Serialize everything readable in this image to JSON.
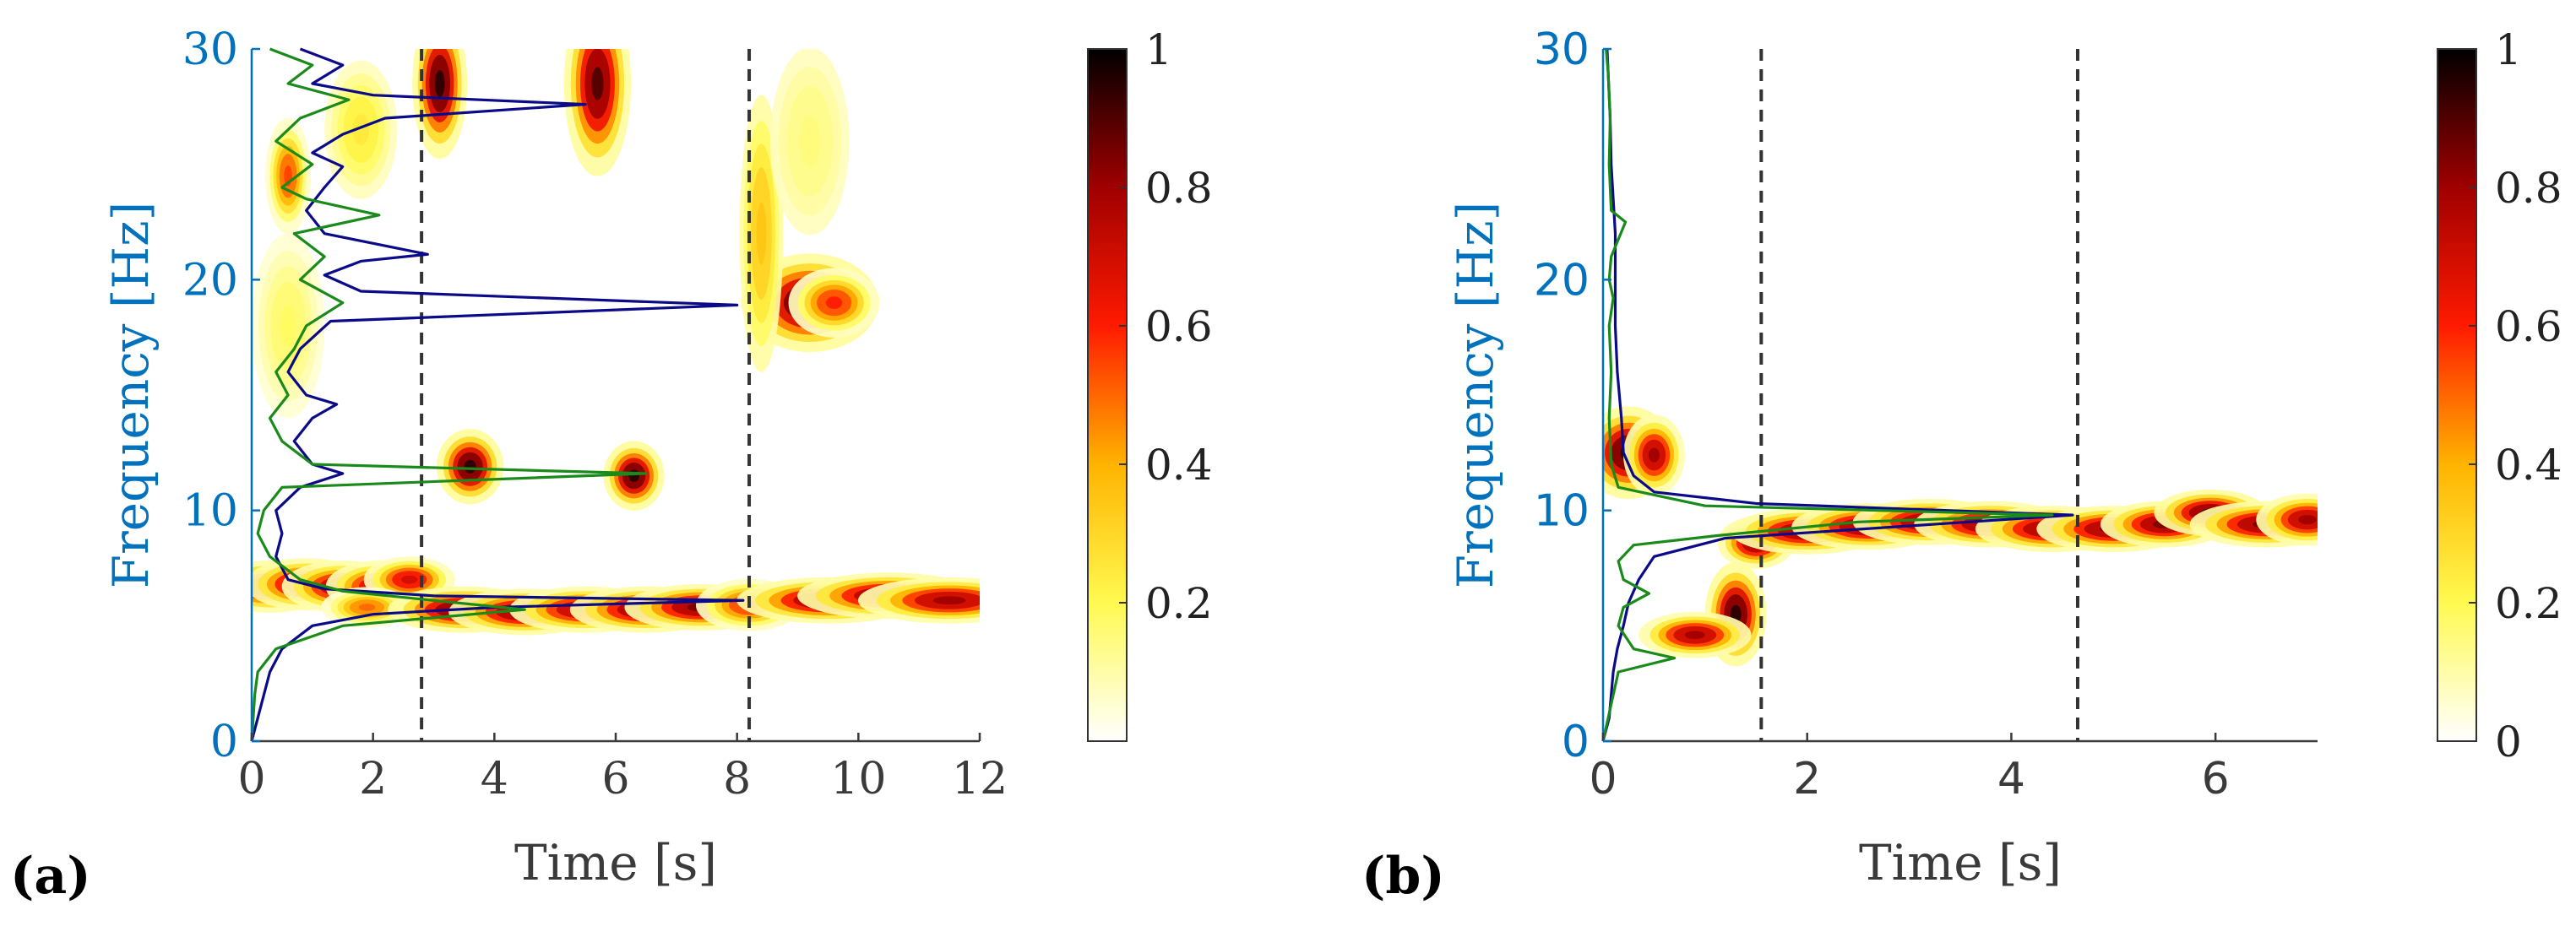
{
  "figure": {
    "panels": [
      "(a)",
      "(b)"
    ]
  },
  "colors": {
    "axis_blue": "#0072BD",
    "curve_blue": "#0B0B8A",
    "curve_green": "#1A8A1A",
    "dashed": "#333333",
    "tick": "#3a3a3a"
  },
  "chart_data": [
    {
      "panel": "(a)",
      "type": "heatmap",
      "title": "",
      "xlabel": "Time [s]",
      "ylabel": "Frequency [Hz]",
      "xlim": [
        0,
        12
      ],
      "ylim": [
        0,
        30
      ],
      "xticks": [
        0,
        2,
        4,
        6,
        8,
        10,
        12
      ],
      "yticks": [
        0,
        10,
        20,
        30
      ],
      "dashed_lines_x": [
        2.8,
        8.2
      ],
      "colorbar": {
        "min": 0,
        "max": 1,
        "ticks": [
          0.2,
          0.4,
          0.6,
          0.8,
          1
        ],
        "labels": [
          "0.2",
          "0.4",
          "0.6",
          "0.8",
          "1"
        ]
      },
      "blobs": [
        {
          "t": 0.3,
          "f": 6.7,
          "st": 0.4,
          "sf": 0.45,
          "a": 0.85
        },
        {
          "t": 0.9,
          "f": 6.8,
          "st": 0.4,
          "sf": 0.45,
          "a": 0.85
        },
        {
          "t": 1.5,
          "f": 6.7,
          "st": 0.4,
          "sf": 0.45,
          "a": 0.8
        },
        {
          "t": 2.1,
          "f": 6.7,
          "st": 0.35,
          "sf": 0.45,
          "a": 0.75
        },
        {
          "t": 2.6,
          "f": 7.0,
          "st": 0.3,
          "sf": 0.4,
          "a": 0.7
        },
        {
          "t": 1.9,
          "f": 5.8,
          "st": 0.3,
          "sf": 0.35,
          "a": 0.5
        },
        {
          "t": 3.5,
          "f": 5.7,
          "st": 0.5,
          "sf": 0.4,
          "a": 0.9
        },
        {
          "t": 4.5,
          "f": 5.6,
          "st": 0.5,
          "sf": 0.4,
          "a": 0.85
        },
        {
          "t": 5.5,
          "f": 5.7,
          "st": 0.5,
          "sf": 0.4,
          "a": 0.8
        },
        {
          "t": 6.5,
          "f": 5.7,
          "st": 0.5,
          "sf": 0.4,
          "a": 0.85
        },
        {
          "t": 7.4,
          "f": 5.8,
          "st": 0.5,
          "sf": 0.4,
          "a": 0.85
        },
        {
          "t": 8.2,
          "f": 5.9,
          "st": 0.35,
          "sf": 0.45,
          "a": 0.6
        },
        {
          "t": 9.5,
          "f": 6.1,
          "st": 0.6,
          "sf": 0.4,
          "a": 0.85
        },
        {
          "t": 10.5,
          "f": 6.3,
          "st": 0.6,
          "sf": 0.4,
          "a": 0.85
        },
        {
          "t": 11.5,
          "f": 6.1,
          "st": 0.6,
          "sf": 0.4,
          "a": 0.8
        },
        {
          "t": 3.6,
          "f": 11.9,
          "st": 0.22,
          "sf": 0.65,
          "a": 0.95
        },
        {
          "t": 6.3,
          "f": 11.5,
          "st": 0.2,
          "sf": 0.6,
          "a": 0.95
        },
        {
          "t": 9.2,
          "f": 19.0,
          "st": 0.45,
          "sf": 0.85,
          "a": 0.95
        },
        {
          "t": 9.6,
          "f": 19.0,
          "st": 0.3,
          "sf": 0.6,
          "a": 0.6
        },
        {
          "t": 3.1,
          "f": 28.5,
          "st": 0.18,
          "sf": 1.3,
          "a": 0.95
        },
        {
          "t": 5.7,
          "f": 28.5,
          "st": 0.22,
          "sf": 1.6,
          "a": 0.9
        },
        {
          "t": 0.6,
          "f": 24.5,
          "st": 0.15,
          "sf": 1.0,
          "a": 0.55
        },
        {
          "t": 1.8,
          "f": 26.5,
          "st": 0.3,
          "sf": 1.5,
          "a": 0.25
        },
        {
          "t": 8.4,
          "f": 22.0,
          "st": 0.18,
          "sf": 3.0,
          "a": 0.35
        },
        {
          "t": 9.2,
          "f": 26.0,
          "st": 0.4,
          "sf": 2.5,
          "a": 0.15
        },
        {
          "t": 0.6,
          "f": 18.0,
          "st": 0.3,
          "sf": 2.0,
          "a": 0.18
        }
      ],
      "series": [
        {
          "name": "blue spectrum",
          "color": "#0B0B8A",
          "xscale": 8.0,
          "baseline_t": 0,
          "points": [
            [
              0,
              0
            ],
            [
              0.05,
              0.5
            ],
            [
              0.1,
              1
            ],
            [
              0.2,
              2
            ],
            [
              0.3,
              3
            ],
            [
              0.5,
              4
            ],
            [
              1.0,
              5
            ],
            [
              2.0,
              5.5
            ],
            [
              4.0,
              5.8
            ],
            [
              8.1,
              6.1
            ],
            [
              3.0,
              6.3
            ],
            [
              1.2,
              6.6
            ],
            [
              0.6,
              7
            ],
            [
              0.4,
              8
            ],
            [
              0.5,
              9
            ],
            [
              0.4,
              10
            ],
            [
              0.8,
              11
            ],
            [
              1.5,
              11.6
            ],
            [
              1.0,
              12
            ],
            [
              0.7,
              13
            ],
            [
              1.0,
              14
            ],
            [
              1.4,
              14.6
            ],
            [
              0.9,
              15
            ],
            [
              0.6,
              16
            ],
            [
              0.8,
              17
            ],
            [
              1.3,
              18.2
            ],
            [
              8.0,
              18.9
            ],
            [
              1.8,
              19.5
            ],
            [
              1.2,
              20.2
            ],
            [
              1.8,
              20.8
            ],
            [
              2.9,
              21.1
            ],
            [
              1.2,
              22.0
            ],
            [
              0.9,
              23
            ],
            [
              1.2,
              24
            ],
            [
              1.5,
              24.9
            ],
            [
              1.0,
              25.5
            ],
            [
              1.5,
              26.3
            ],
            [
              2.2,
              27
            ],
            [
              5.5,
              27.6
            ],
            [
              2.0,
              28
            ],
            [
              1.0,
              28.5
            ],
            [
              1.5,
              29.3
            ],
            [
              0.8,
              30
            ]
          ]
        },
        {
          "name": "green spectrum",
          "color": "#1A8A1A",
          "xscale": 8.0,
          "baseline_t": 0,
          "points": [
            [
              0,
              0
            ],
            [
              0.05,
              2
            ],
            [
              0.1,
              3
            ],
            [
              0.4,
              4
            ],
            [
              1.5,
              5
            ],
            [
              4.5,
              5.7
            ],
            [
              1.5,
              6.5
            ],
            [
              0.8,
              7
            ],
            [
              0.3,
              8
            ],
            [
              0.1,
              9
            ],
            [
              0.2,
              10
            ],
            [
              0.5,
              11
            ],
            [
              6.5,
              11.6
            ],
            [
              1.0,
              12
            ],
            [
              0.5,
              13
            ],
            [
              0.3,
              14
            ],
            [
              0.6,
              15
            ],
            [
              0.4,
              16
            ],
            [
              0.7,
              17
            ],
            [
              0.9,
              18
            ],
            [
              1.5,
              19
            ],
            [
              0.8,
              20
            ],
            [
              1.2,
              21
            ],
            [
              0.7,
              22
            ],
            [
              2.1,
              22.8
            ],
            [
              0.9,
              23.5
            ],
            [
              0.5,
              24
            ],
            [
              1.0,
              25
            ],
            [
              0.4,
              26
            ],
            [
              0.8,
              27
            ],
            [
              1.6,
              27.8
            ],
            [
              0.6,
              28.5
            ],
            [
              1.0,
              29.3
            ],
            [
              0.3,
              30
            ]
          ]
        }
      ]
    },
    {
      "panel": "(b)",
      "type": "heatmap",
      "title": "",
      "xlabel": "Time [s]",
      "ylabel": "Frequency [Hz]",
      "xlim": [
        0,
        7
      ],
      "ylim": [
        0,
        30
      ],
      "xticks": [
        0,
        2,
        4,
        6
      ],
      "yticks": [
        0,
        10,
        20,
        30
      ],
      "dashed_lines_x": [
        1.55,
        4.65
      ],
      "colorbar": {
        "min": 0,
        "max": 1,
        "ticks": [
          0,
          0.2,
          0.4,
          0.6,
          0.8,
          1
        ],
        "labels": [
          "0",
          "0.2",
          "0.4",
          "0.6",
          "0.8",
          "1"
        ]
      },
      "blobs": [
        {
          "t": 0.25,
          "f": 12.5,
          "st": 0.18,
          "sf": 0.8,
          "a": 0.95
        },
        {
          "t": 0.5,
          "f": 12.4,
          "st": 0.12,
          "sf": 0.7,
          "a": 0.8
        },
        {
          "t": 1.3,
          "f": 5.5,
          "st": 0.12,
          "sf": 0.9,
          "a": 0.95
        },
        {
          "t": 0.9,
          "f": 4.6,
          "st": 0.22,
          "sf": 0.4,
          "a": 0.8
        },
        {
          "t": 1.5,
          "f": 8.6,
          "st": 0.15,
          "sf": 0.45,
          "a": 0.85
        },
        {
          "t": 2.0,
          "f": 9.1,
          "st": 0.3,
          "sf": 0.4,
          "a": 0.85
        },
        {
          "t": 2.6,
          "f": 9.3,
          "st": 0.3,
          "sf": 0.4,
          "a": 0.85
        },
        {
          "t": 3.2,
          "f": 9.5,
          "st": 0.3,
          "sf": 0.4,
          "a": 0.85
        },
        {
          "t": 3.8,
          "f": 9.4,
          "st": 0.3,
          "sf": 0.4,
          "a": 0.85
        },
        {
          "t": 4.4,
          "f": 9.2,
          "st": 0.3,
          "sf": 0.4,
          "a": 0.85
        },
        {
          "t": 5.0,
          "f": 9.2,
          "st": 0.3,
          "sf": 0.4,
          "a": 0.85
        },
        {
          "t": 5.5,
          "f": 9.4,
          "st": 0.25,
          "sf": 0.4,
          "a": 0.85
        },
        {
          "t": 5.95,
          "f": 9.9,
          "st": 0.22,
          "sf": 0.4,
          "a": 0.9
        },
        {
          "t": 6.5,
          "f": 9.4,
          "st": 0.3,
          "sf": 0.4,
          "a": 0.85
        },
        {
          "t": 6.9,
          "f": 9.6,
          "st": 0.2,
          "sf": 0.45,
          "a": 0.8
        }
      ],
      "series": [
        {
          "name": "blue spectrum",
          "color": "#0B0B8A",
          "xscale": 4.6,
          "baseline_t": 0,
          "points": [
            [
              0,
              0
            ],
            [
              0.06,
              1
            ],
            [
              0.08,
              2
            ],
            [
              0.1,
              3
            ],
            [
              0.14,
              4
            ],
            [
              0.2,
              5
            ],
            [
              0.25,
              6
            ],
            [
              0.35,
              7
            ],
            [
              0.5,
              8
            ],
            [
              1.2,
              8.8
            ],
            [
              4.6,
              9.8
            ],
            [
              1.5,
              10.3
            ],
            [
              0.5,
              10.8
            ],
            [
              0.3,
              11.5
            ],
            [
              0.2,
              12.5
            ],
            [
              0.18,
              14
            ],
            [
              0.14,
              16
            ],
            [
              0.12,
              18
            ],
            [
              0.12,
              20
            ],
            [
              0.12,
              22
            ],
            [
              0.1,
              23.5
            ],
            [
              0.08,
              25
            ],
            [
              0.07,
              27
            ],
            [
              0.05,
              29
            ],
            [
              0.04,
              30
            ]
          ]
        },
        {
          "name": "green spectrum",
          "color": "#1A8A1A",
          "xscale": 4.6,
          "baseline_t": 0,
          "points": [
            [
              0,
              0
            ],
            [
              0.05,
              1
            ],
            [
              0.1,
              2
            ],
            [
              0.15,
              3
            ],
            [
              0.7,
              3.6
            ],
            [
              0.3,
              4.0
            ],
            [
              0.15,
              5
            ],
            [
              0.2,
              5.8
            ],
            [
              0.45,
              6.4
            ],
            [
              0.2,
              7
            ],
            [
              0.15,
              7.8
            ],
            [
              0.3,
              8.5
            ],
            [
              1.1,
              8.9
            ],
            [
              2.5,
              9.5
            ],
            [
              4.4,
              9.8
            ],
            [
              1.0,
              10.2
            ],
            [
              0.15,
              11
            ],
            [
              0.08,
              12
            ],
            [
              0.06,
              14
            ],
            [
              0.08,
              16
            ],
            [
              0.06,
              18
            ],
            [
              0.1,
              19.2
            ],
            [
              0.06,
              20
            ],
            [
              0.08,
              21
            ],
            [
              0.22,
              22.5
            ],
            [
              0.08,
              23
            ],
            [
              0.06,
              25
            ],
            [
              0.07,
              27
            ],
            [
              0.05,
              29
            ],
            [
              0.03,
              30
            ]
          ]
        }
      ]
    }
  ]
}
